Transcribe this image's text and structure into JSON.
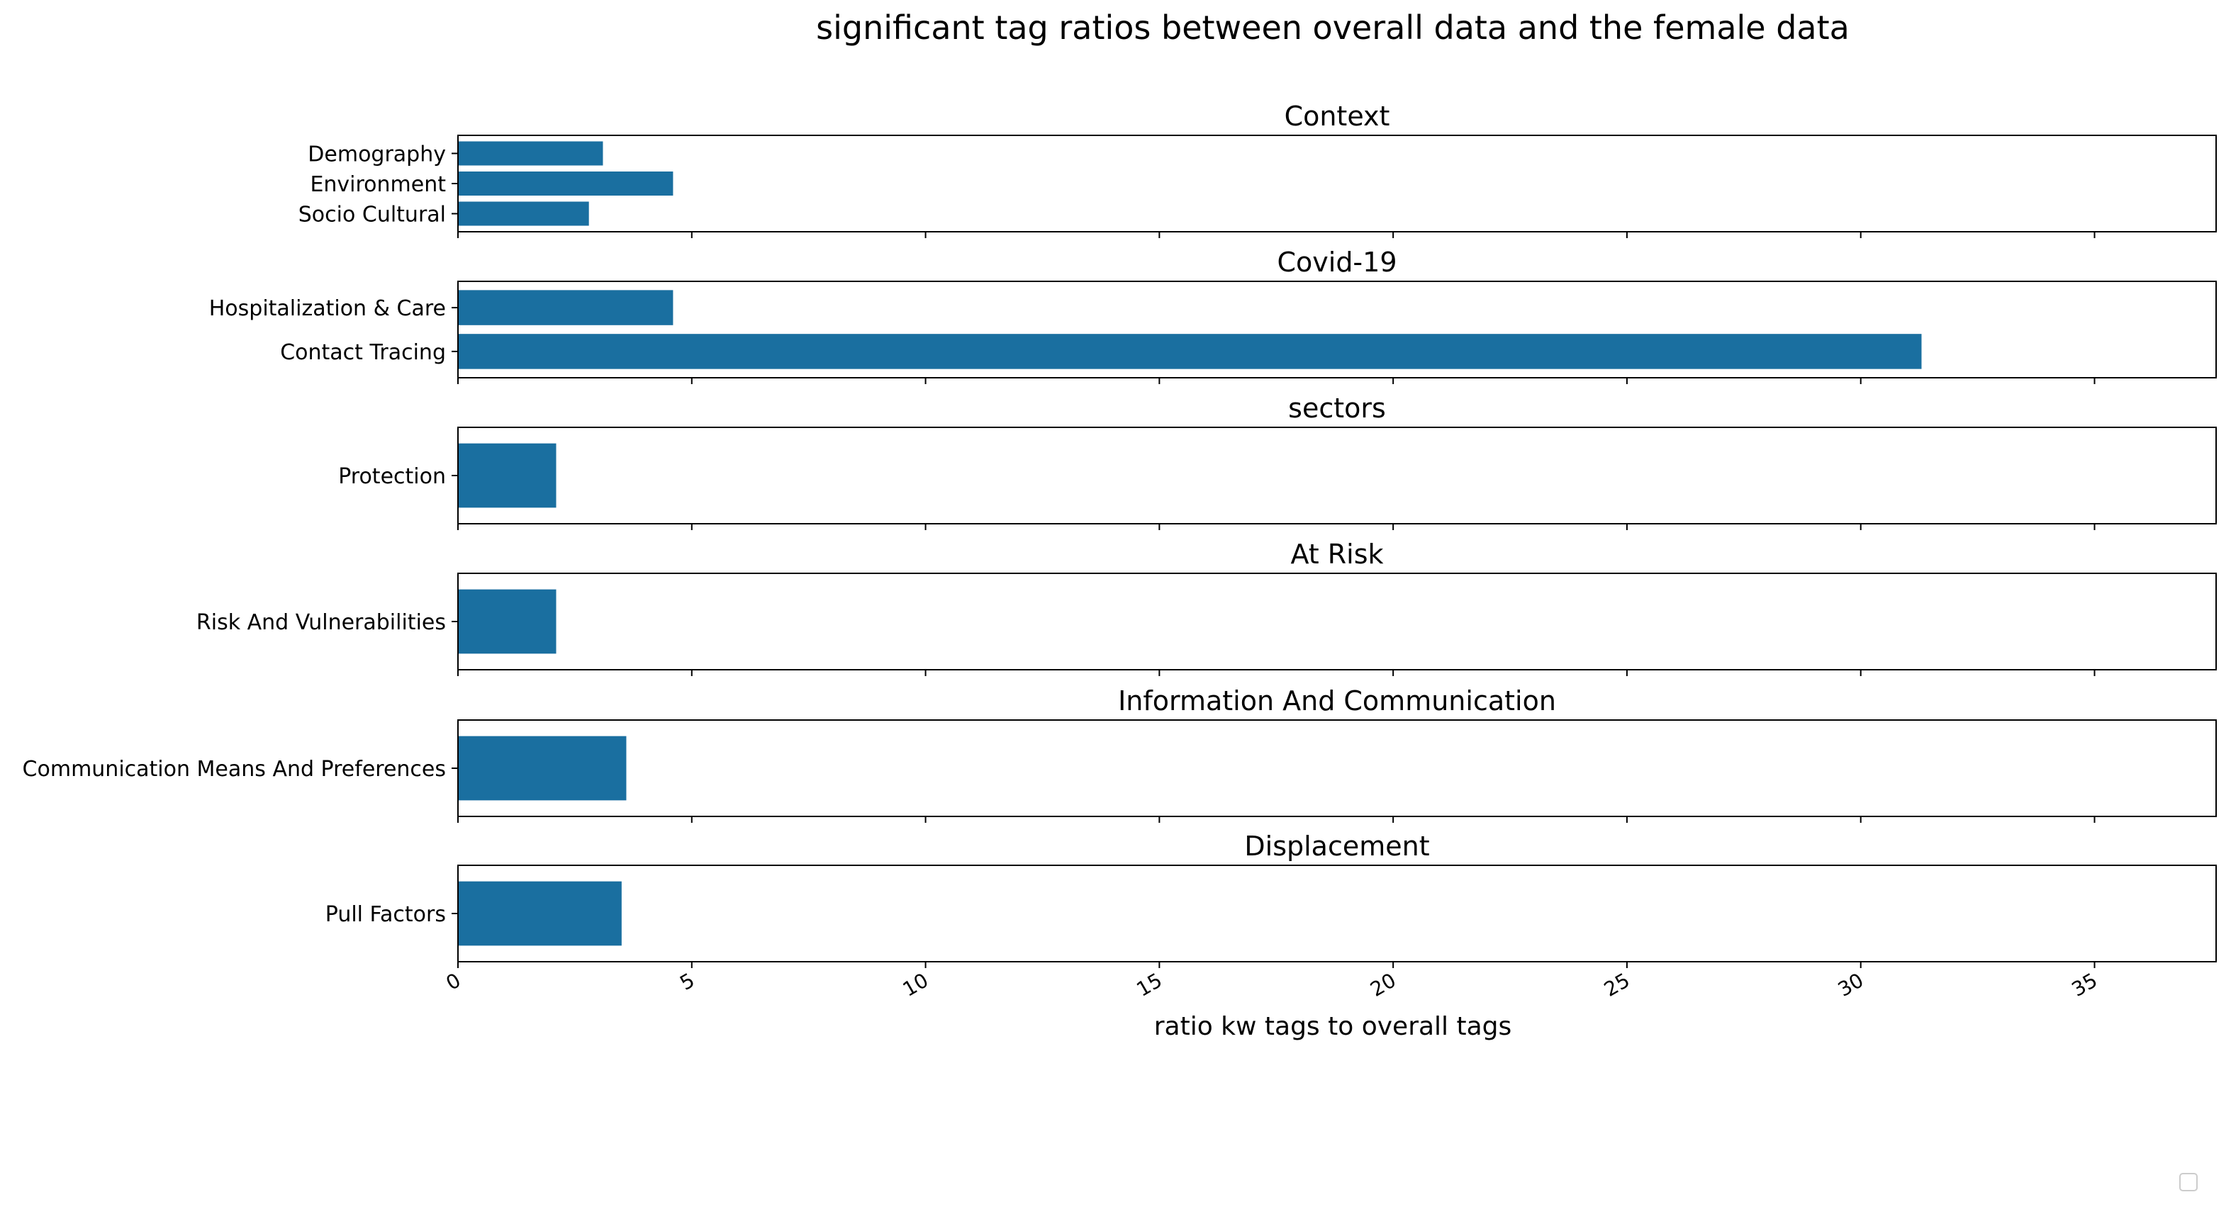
{
  "chart_data": {
    "type": "bar",
    "orientation": "horizontal",
    "title": "significant tag ratios between overall data and the female data",
    "xlabel": "ratio kw tags to overall tags",
    "xlim": [
      0,
      37.6
    ],
    "xticks": [
      0,
      5,
      10,
      15,
      20,
      25,
      30,
      35
    ],
    "shared_x": true,
    "grid": false,
    "legend": "bottom-right (empty)",
    "bar_color": "#1a6fa0",
    "panels": [
      {
        "title": "Context",
        "categories": [
          "Demography",
          "Environment",
          "Socio Cultural"
        ],
        "values": [
          3.1,
          4.6,
          2.8
        ]
      },
      {
        "title": "Covid-19",
        "categories": [
          "Hospitalization & Care",
          "Contact Tracing"
        ],
        "values": [
          4.6,
          31.3
        ]
      },
      {
        "title": "sectors",
        "categories": [
          "Protection"
        ],
        "values": [
          2.1
        ]
      },
      {
        "title": "At Risk",
        "categories": [
          "Risk And Vulnerabilities"
        ],
        "values": [
          2.1
        ]
      },
      {
        "title": "Information And Communication",
        "categories": [
          "Communication Means And Preferences"
        ],
        "values": [
          3.6
        ]
      },
      {
        "title": "Displacement",
        "categories": [
          "Pull Factors"
        ],
        "values": [
          3.5
        ]
      }
    ]
  }
}
